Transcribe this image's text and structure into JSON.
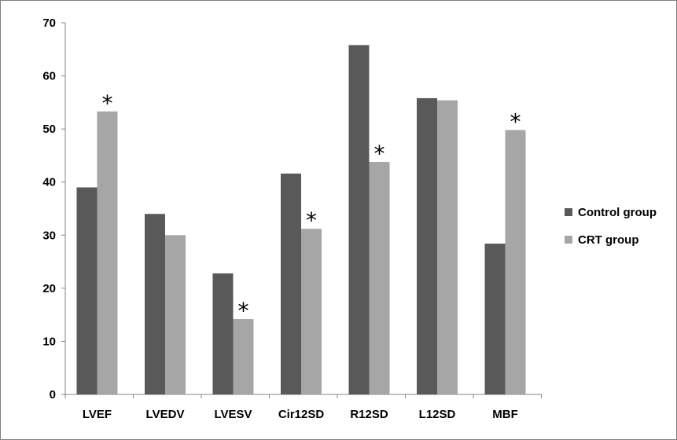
{
  "chart_data": {
    "type": "bar",
    "title": "",
    "xlabel": "",
    "ylabel": "",
    "categories": [
      "LVEF",
      "LVEDV",
      "LVESV",
      "Cir12SD",
      "R12SD",
      "L12SD",
      "MBF"
    ],
    "series": [
      {
        "name": "Control group",
        "color": "#595959",
        "values": [
          39,
          34,
          22.8,
          41.6,
          65.8,
          55.8,
          28.4
        ]
      },
      {
        "name": "CRT group",
        "color": "#a6a6a6",
        "values": [
          53.3,
          30,
          14.2,
          31.2,
          43.8,
          55.4,
          49.8
        ]
      }
    ],
    "significance_marker": "*",
    "significant_categories": [
      "LVEF",
      "LVESV",
      "Cir12SD",
      "R12SD",
      "MBF"
    ],
    "ylim": [
      0,
      70
    ],
    "yticks": [
      0,
      10,
      20,
      30,
      40,
      50,
      60,
      70
    ],
    "grid": false,
    "legend_position": "right"
  }
}
